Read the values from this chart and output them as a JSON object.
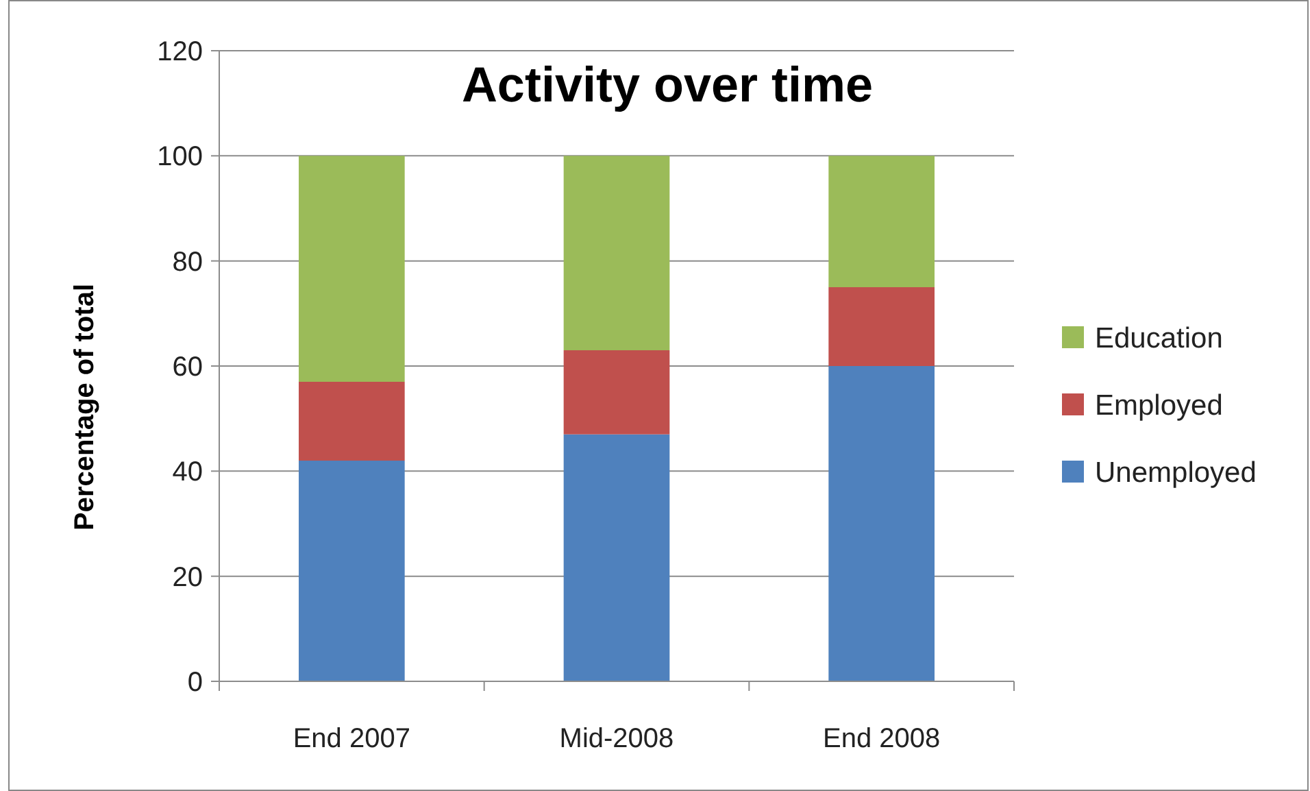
{
  "chart_data": {
    "type": "bar",
    "title": "Activity over time",
    "ylabel": "Percentage of total",
    "categories": [
      "End 2007",
      "Mid-2008",
      "End 2008"
    ],
    "stacked": true,
    "series": [
      {
        "name": "Unemployed",
        "color": "#4f81bd",
        "values": [
          42,
          47,
          60
        ]
      },
      {
        "name": "Employed",
        "color": "#c0504d",
        "values": [
          15,
          16,
          15
        ]
      },
      {
        "name": "Education",
        "color": "#9bbb59",
        "values": [
          43,
          37,
          25
        ]
      }
    ],
    "ylim": [
      0,
      120
    ],
    "yticks": [
      0,
      20,
      40,
      60,
      80,
      100,
      120
    ],
    "grid": "y",
    "legend": "right"
  }
}
